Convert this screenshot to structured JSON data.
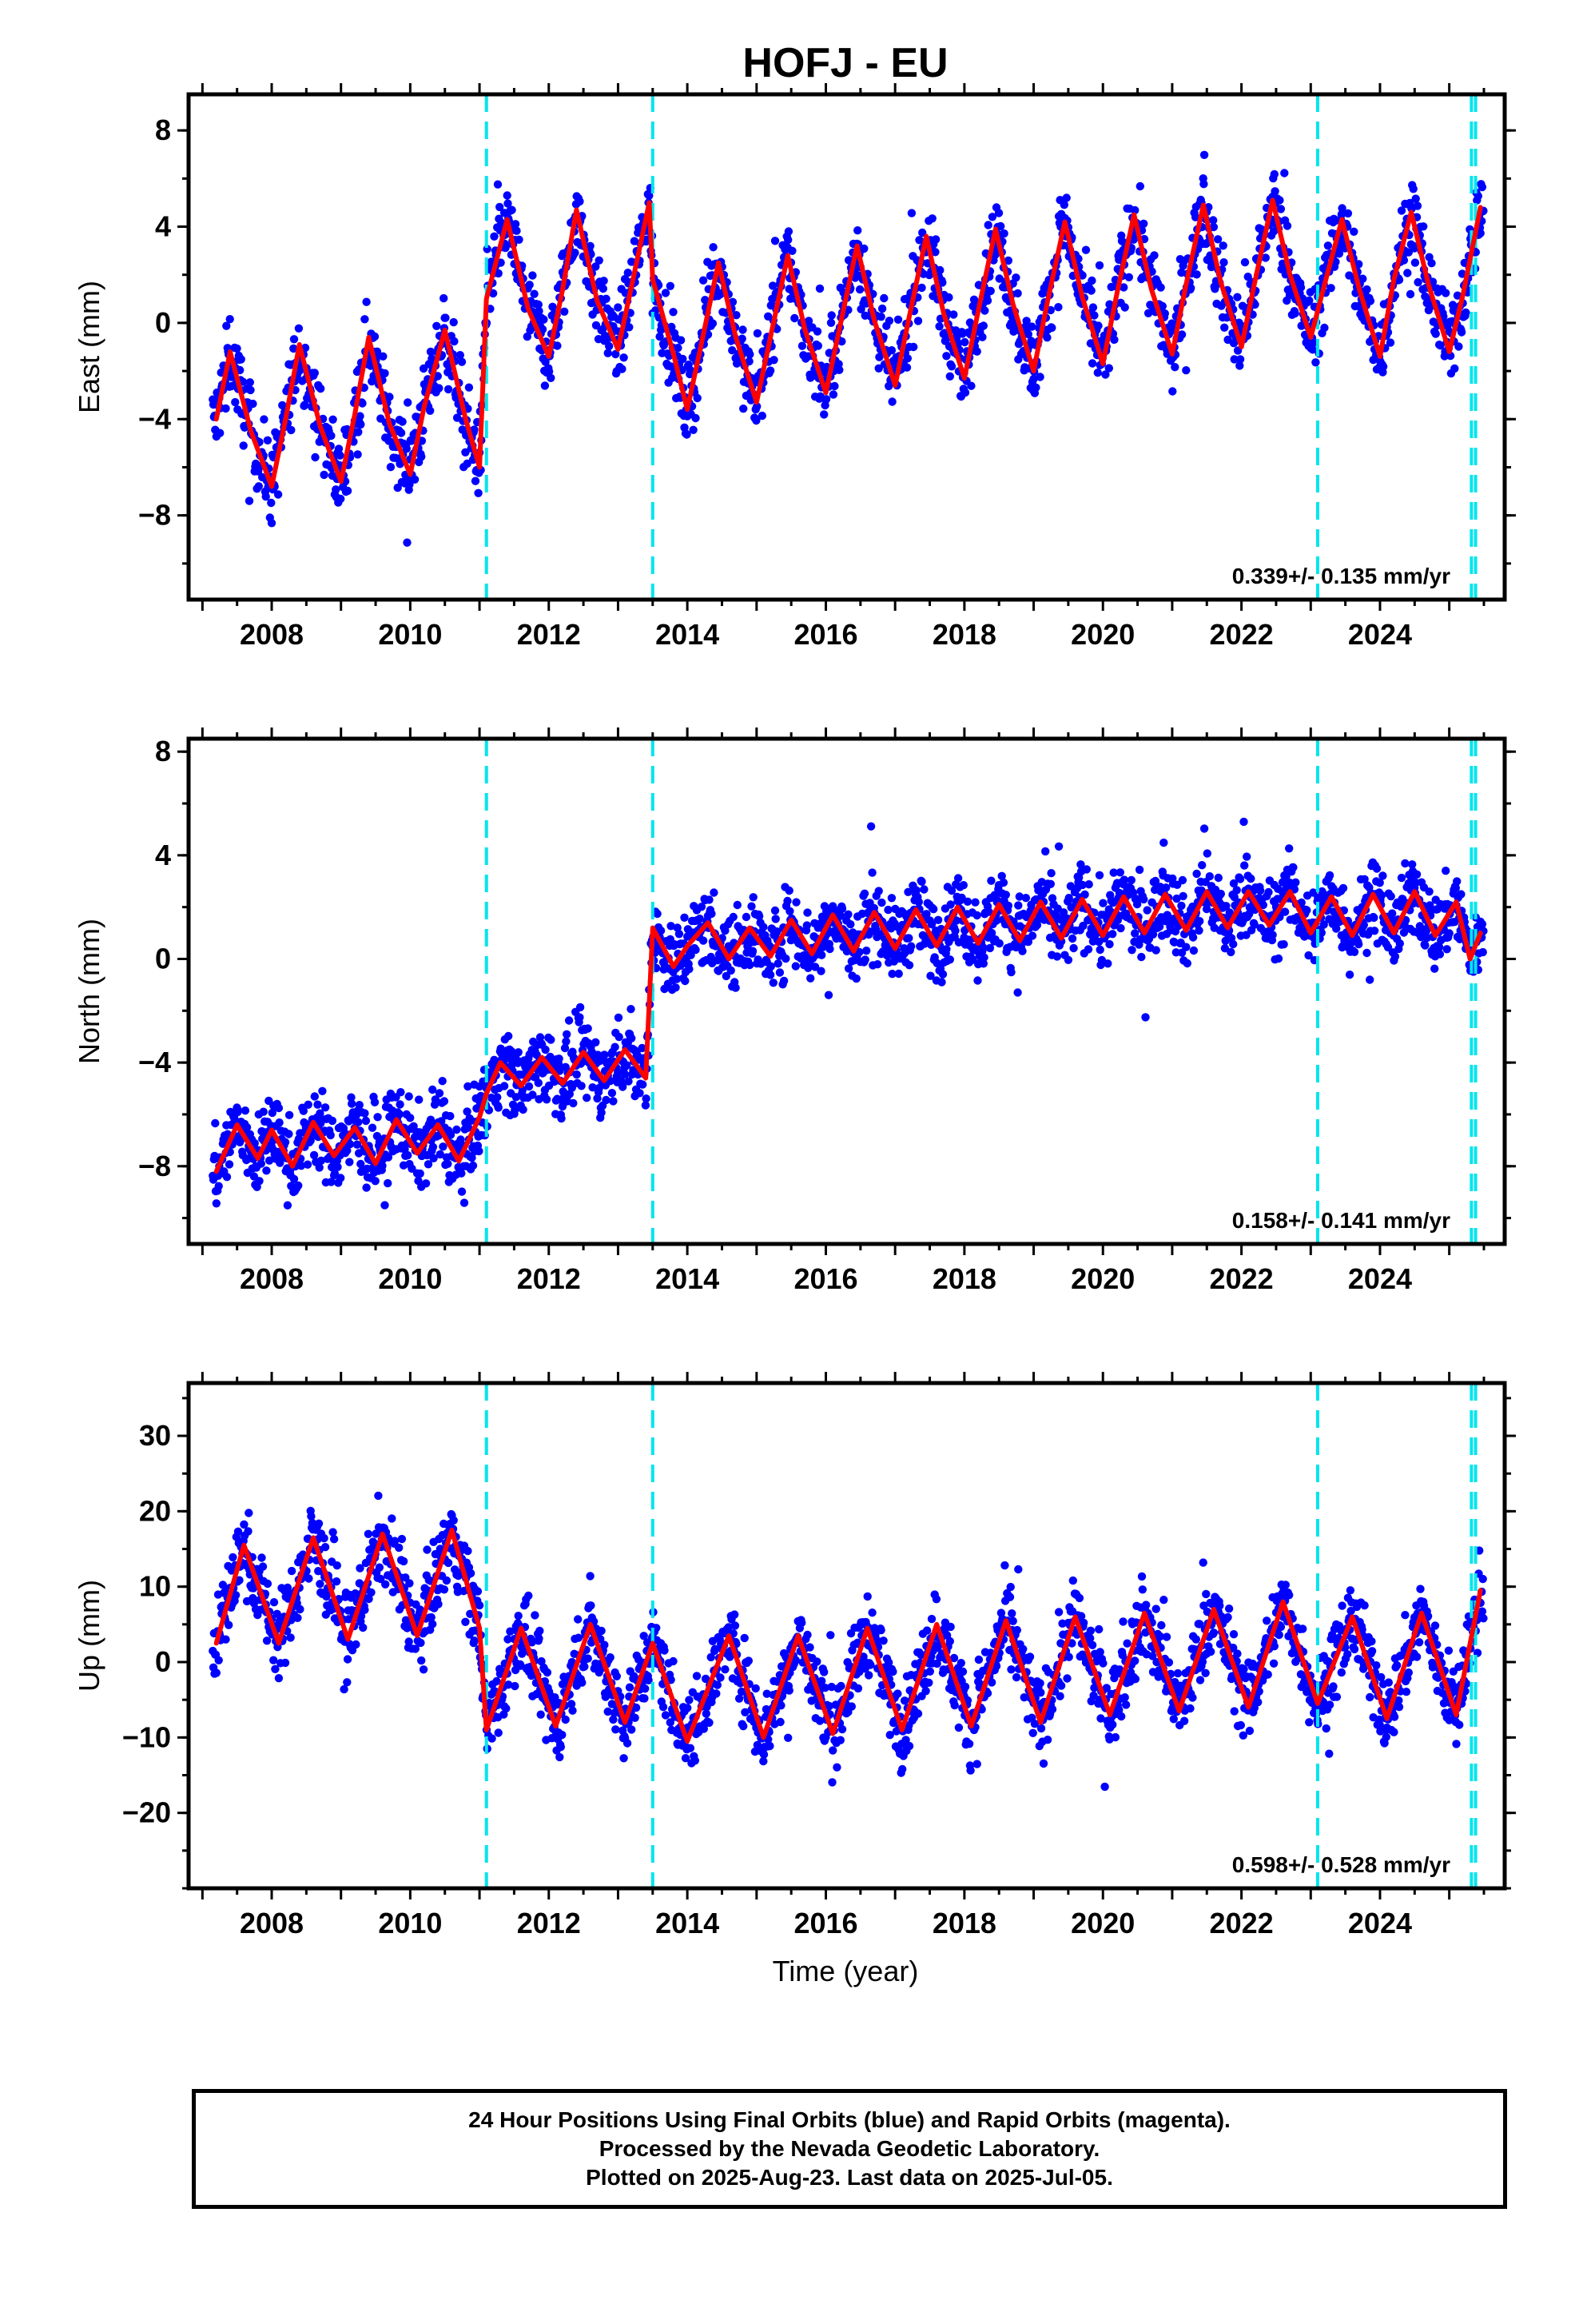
{
  "title": "HOFJ - EU",
  "x_axis_label": "Time (year)",
  "caption": {
    "line1": "24 Hour Positions Using Final Orbits (blue) and Rapid Orbits (magenta).",
    "line2": "Processed by the Nevada Geodetic Laboratory.",
    "line3": "Plotted on 2025-Aug-23. Last data on 2025-Jul-05."
  },
  "colors": {
    "points": "#0000ff",
    "fit": "#ff0000",
    "breaks": "#00e5ee",
    "frame": "#000000"
  },
  "chart_data": [
    {
      "type": "scatter",
      "ylabel": "East (mm)",
      "xlim": [
        2006.8,
        2025.8
      ],
      "ylim": [
        -11.5,
        9.5
      ],
      "x_ticks": [
        2008,
        2010,
        2012,
        2014,
        2016,
        2018,
        2020,
        2022,
        2024
      ],
      "y_ticks": [
        -8,
        -4,
        0,
        4,
        8
      ],
      "y_tick_labels": [
        "−8",
        "−4",
        "0",
        "4",
        "8"
      ],
      "annotation": "0.339+/- 0.135 mm/yr",
      "breaks": [
        2011.1,
        2013.5,
        2023.1,
        2025.32,
        2025.38
      ],
      "series": [
        {
          "x": [
            2007.2,
            2007.4,
            2007.7,
            2008.0,
            2008.2,
            2008.4,
            2008.7,
            2009.0,
            2009.2,
            2009.4,
            2009.7,
            2010.0,
            2010.2,
            2010.5,
            2010.8,
            2011.0,
            2011.1,
            2011.4,
            2011.7,
            2012.0,
            2012.2,
            2012.4,
            2012.7,
            2013.0,
            2013.2,
            2013.45,
            2013.5,
            2013.8,
            2014.0,
            2014.2,
            2014.45,
            2014.7,
            2015.0,
            2015.2,
            2015.45,
            2015.7,
            2016.0,
            2016.2,
            2016.45,
            2016.7,
            2017.0,
            2017.2,
            2017.45,
            2017.7,
            2018.0,
            2018.2,
            2018.45,
            2018.7,
            2019.0,
            2019.2,
            2019.45,
            2019.7,
            2020.0,
            2020.2,
            2020.45,
            2020.7,
            2021.0,
            2021.2,
            2021.45,
            2021.7,
            2022.0,
            2022.2,
            2022.45,
            2022.7,
            2023.0,
            2023.2,
            2023.45,
            2023.7,
            2024.0,
            2024.2,
            2024.45,
            2024.7,
            2025.0,
            2025.2,
            2025.45
          ],
          "y": [
            -4.0,
            -1.2,
            -4.5,
            -6.8,
            -4.0,
            -0.9,
            -4.3,
            -6.6,
            -3.8,
            -0.6,
            -4.2,
            -6.3,
            -3.5,
            -0.3,
            -4.0,
            -6.0,
            1.0,
            4.3,
            0.6,
            -1.4,
            1.4,
            4.7,
            0.9,
            -1.1,
            1.6,
            5.0,
            1.8,
            -1.3,
            -3.6,
            -0.9,
            2.5,
            -0.6,
            -3.3,
            -0.6,
            2.8,
            -0.3,
            -2.9,
            -0.2,
            3.2,
            0.1,
            -2.6,
            0.2,
            3.6,
            0.4,
            -2.3,
            0.5,
            3.9,
            0.8,
            -2.0,
            0.9,
            4.2,
            1.1,
            -1.7,
            1.2,
            4.5,
            1.4,
            -1.3,
            1.6,
            4.9,
            1.7,
            -1.0,
            1.8,
            5.1,
            2.0,
            -0.6,
            1.6,
            4.3,
            1.4,
            -1.4,
            1.8,
            4.6,
            1.6,
            -1.2,
            1.2,
            4.8
          ]
        }
      ]
    },
    {
      "type": "scatter",
      "ylabel": "North (mm)",
      "xlim": [
        2006.8,
        2025.8
      ],
      "ylim": [
        -11.0,
        8.5
      ],
      "x_ticks": [
        2008,
        2010,
        2012,
        2014,
        2016,
        2018,
        2020,
        2022,
        2024
      ],
      "y_ticks": [
        -8,
        -4,
        0,
        4,
        8
      ],
      "y_tick_labels": [
        "−8",
        "−4",
        "0",
        "4",
        "8"
      ],
      "annotation": "0.158+/- 0.141 mm/yr",
      "breaks": [
        2011.1,
        2013.5,
        2023.1,
        2025.32,
        2025.38
      ],
      "series": [
        {
          "x": [
            2007.2,
            2007.5,
            2007.8,
            2008.0,
            2008.3,
            2008.6,
            2008.9,
            2009.2,
            2009.5,
            2009.8,
            2010.1,
            2010.4,
            2010.7,
            2011.0,
            2011.1,
            2011.3,
            2011.6,
            2011.9,
            2012.2,
            2012.5,
            2012.8,
            2013.1,
            2013.4,
            2013.5,
            2013.8,
            2014.0,
            2014.3,
            2014.6,
            2014.9,
            2015.2,
            2015.5,
            2015.8,
            2016.1,
            2016.4,
            2016.7,
            2017.0,
            2017.3,
            2017.6,
            2017.9,
            2018.2,
            2018.5,
            2018.8,
            2019.1,
            2019.4,
            2019.7,
            2020.0,
            2020.3,
            2020.6,
            2020.9,
            2021.2,
            2021.5,
            2021.8,
            2022.1,
            2022.4,
            2022.7,
            2023.0,
            2023.3,
            2023.6,
            2023.9,
            2024.2,
            2024.5,
            2024.8,
            2025.1,
            2025.3,
            2025.45
          ],
          "y": [
            -8.2,
            -6.4,
            -7.7,
            -6.6,
            -8.0,
            -6.3,
            -7.6,
            -6.5,
            -7.9,
            -6.2,
            -7.5,
            -6.4,
            -7.8,
            -6.1,
            -5.2,
            -4.0,
            -4.9,
            -3.8,
            -4.8,
            -3.6,
            -4.7,
            -3.5,
            -4.6,
            1.2,
            -0.3,
            0.5,
            1.4,
            0.0,
            1.2,
            0.1,
            1.5,
            0.2,
            1.7,
            0.3,
            1.8,
            0.4,
            1.9,
            0.5,
            2.0,
            0.6,
            2.1,
            0.7,
            2.2,
            0.8,
            2.3,
            0.9,
            2.4,
            1.0,
            2.5,
            1.1,
            2.6,
            1.2,
            2.6,
            1.3,
            2.6,
            1.0,
            2.4,
            0.9,
            2.5,
            1.0,
            2.6,
            0.9,
            2.2,
            0.0,
            1.0
          ]
        }
      ]
    },
    {
      "type": "scatter",
      "ylabel": "Up (mm)",
      "xlim": [
        2006.8,
        2025.8
      ],
      "ylim": [
        -30,
        37
      ],
      "x_ticks": [
        2008,
        2010,
        2012,
        2014,
        2016,
        2018,
        2020,
        2022,
        2024
      ],
      "y_ticks": [
        -20,
        -10,
        0,
        10,
        20,
        30
      ],
      "y_tick_labels": [
        "−20",
        "−10",
        "0",
        "10",
        "20",
        "30"
      ],
      "annotation": "0.598+/- 0.528 mm/yr",
      "breaks": [
        2011.1,
        2013.5,
        2023.1,
        2025.32,
        2025.38
      ],
      "series": [
        {
          "x": [
            2007.2,
            2007.6,
            2008.1,
            2008.6,
            2009.1,
            2009.6,
            2010.1,
            2010.6,
            2011.0,
            2011.1,
            2011.6,
            2012.1,
            2012.6,
            2013.1,
            2013.5,
            2014.0,
            2014.6,
            2015.1,
            2015.6,
            2016.1,
            2016.6,
            2017.1,
            2017.6,
            2018.1,
            2018.6,
            2019.1,
            2019.6,
            2020.1,
            2020.6,
            2021.1,
            2021.6,
            2022.1,
            2022.6,
            2023.1,
            2023.6,
            2024.1,
            2024.6,
            2025.1,
            2025.45
          ],
          "y": [
            2.5,
            15.5,
            2.5,
            16.5,
            3.0,
            17.0,
            3.5,
            17.5,
            4.5,
            -9.0,
            4.5,
            -8.5,
            5.0,
            -8.0,
            2.5,
            -10.5,
            3.5,
            -10.0,
            3.5,
            -9.5,
            4.5,
            -9.0,
            5.0,
            -8.5,
            5.5,
            -8.0,
            6.0,
            -7.0,
            6.5,
            -6.5,
            7.0,
            -6.0,
            8.0,
            -5.5,
            6.0,
            -7.5,
            6.5,
            -7.0,
            9.5
          ]
        }
      ]
    }
  ]
}
